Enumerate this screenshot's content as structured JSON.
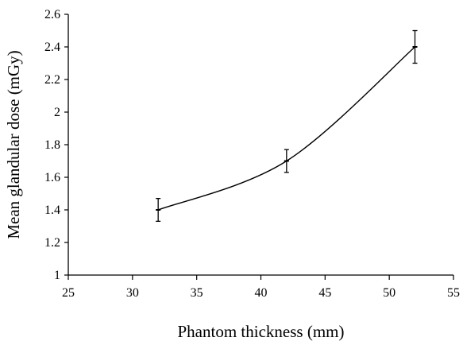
{
  "chart_data": {
    "type": "line",
    "title": "",
    "xlabel": "Phantom thickness (mm)",
    "ylabel": "Mean glandular dose (mGy)",
    "xlim": [
      25,
      55
    ],
    "ylim": [
      1,
      2.6
    ],
    "x_ticks": [
      25,
      30,
      35,
      40,
      45,
      50,
      55
    ],
    "y_ticks": [
      1,
      1.2,
      1.4,
      1.6,
      1.8,
      2,
      2.2,
      2.4,
      2.6
    ],
    "x_tick_labels": [
      "25",
      "30",
      "35",
      "40",
      "45",
      "50",
      "55"
    ],
    "y_tick_labels": [
      "1",
      "1.2",
      "1.4",
      "1.6",
      "1.8",
      "2",
      "2.2",
      "2.4",
      "2.6"
    ],
    "grid": false,
    "legend": "none",
    "smooth_line": true,
    "series": [
      {
        "x": [
          32,
          42,
          52
        ],
        "y": [
          1.4,
          1.7,
          2.4
        ],
        "error": [
          0.07,
          0.07,
          0.1
        ],
        "marker": "dash",
        "color": "#000000"
      }
    ]
  }
}
